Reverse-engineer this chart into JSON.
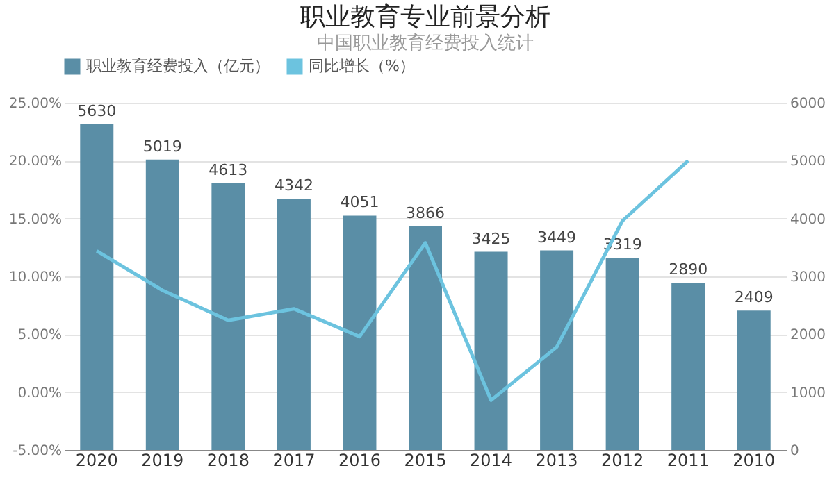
{
  "chart_data": {
    "type": "bar",
    "title": "职业教育专业前景分析",
    "subtitle": "中国职业教育经费投入统计",
    "categories": [
      "2020",
      "2019",
      "2018",
      "2017",
      "2016",
      "2015",
      "2014",
      "2013",
      "2012",
      "2011",
      "2010"
    ],
    "series": [
      {
        "name": "职业教育经费投入（亿元）",
        "axis": "y2",
        "color": "#5a8ea6",
        "values": [
          5630,
          5019,
          4613,
          4342,
          4051,
          3866,
          3425,
          3449,
          3319,
          2890,
          2409
        ],
        "value_labels": [
          "5630",
          "5019",
          "4613",
          "4342",
          "4051",
          "3866",
          "3425",
          "3449",
          "3319",
          "2890",
          "2409"
        ]
      },
      {
        "name": "同比增长（%）",
        "type": "line",
        "axis": "y",
        "color": "#6cc3df",
        "values": [
          12.2,
          8.8,
          6.2,
          7.2,
          4.8,
          12.9,
          -0.7,
          3.9,
          14.8,
          20.0,
          null
        ]
      }
    ],
    "ylim": [
      -5,
      25
    ],
    "yticks": [
      {
        "value": -5,
        "label": "-5.00%"
      },
      {
        "value": 0,
        "label": "0.00%"
      },
      {
        "value": 5,
        "label": "5.00%"
      },
      {
        "value": 10,
        "label": "10.00%"
      },
      {
        "value": 15,
        "label": "15.00%"
      },
      {
        "value": 20,
        "label": "20.00%"
      },
      {
        "value": 25,
        "label": "25.00%"
      }
    ],
    "y2lim": [
      0,
      6000
    ],
    "y2ticks": [
      0,
      1000,
      2000,
      3000,
      4000,
      5000,
      6000
    ],
    "grid": "y",
    "legend": "top",
    "marker": "none",
    "line_style": "solid"
  }
}
